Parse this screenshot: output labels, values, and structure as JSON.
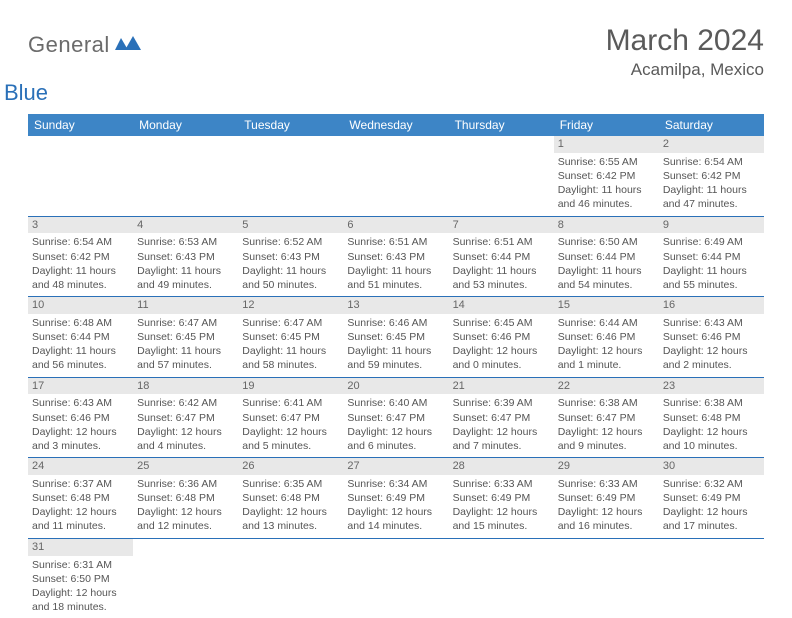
{
  "brand": {
    "general": "General",
    "blue": "Blue",
    "icon_color": "#2a70b8"
  },
  "header": {
    "month": "March 2024",
    "location": "Acamilpa, Mexico"
  },
  "styling": {
    "header_bg": "#3d85c6",
    "header_text": "#ffffff",
    "daynum_bg": "#e8e8e8",
    "border_color": "#2a70b8",
    "text_color": "#555555",
    "title_color": "#5a5a5a"
  },
  "calendar": {
    "daysOfWeek": [
      "Sunday",
      "Monday",
      "Tuesday",
      "Wednesday",
      "Thursday",
      "Friday",
      "Saturday"
    ],
    "weeks": [
      [
        null,
        null,
        null,
        null,
        null,
        {
          "n": "1",
          "sr": "Sunrise: 6:55 AM",
          "ss": "Sunset: 6:42 PM",
          "dl": "Daylight: 11 hours and 46 minutes."
        },
        {
          "n": "2",
          "sr": "Sunrise: 6:54 AM",
          "ss": "Sunset: 6:42 PM",
          "dl": "Daylight: 11 hours and 47 minutes."
        }
      ],
      [
        {
          "n": "3",
          "sr": "Sunrise: 6:54 AM",
          "ss": "Sunset: 6:42 PM",
          "dl": "Daylight: 11 hours and 48 minutes."
        },
        {
          "n": "4",
          "sr": "Sunrise: 6:53 AM",
          "ss": "Sunset: 6:43 PM",
          "dl": "Daylight: 11 hours and 49 minutes."
        },
        {
          "n": "5",
          "sr": "Sunrise: 6:52 AM",
          "ss": "Sunset: 6:43 PM",
          "dl": "Daylight: 11 hours and 50 minutes."
        },
        {
          "n": "6",
          "sr": "Sunrise: 6:51 AM",
          "ss": "Sunset: 6:43 PM",
          "dl": "Daylight: 11 hours and 51 minutes."
        },
        {
          "n": "7",
          "sr": "Sunrise: 6:51 AM",
          "ss": "Sunset: 6:44 PM",
          "dl": "Daylight: 11 hours and 53 minutes."
        },
        {
          "n": "8",
          "sr": "Sunrise: 6:50 AM",
          "ss": "Sunset: 6:44 PM",
          "dl": "Daylight: 11 hours and 54 minutes."
        },
        {
          "n": "9",
          "sr": "Sunrise: 6:49 AM",
          "ss": "Sunset: 6:44 PM",
          "dl": "Daylight: 11 hours and 55 minutes."
        }
      ],
      [
        {
          "n": "10",
          "sr": "Sunrise: 6:48 AM",
          "ss": "Sunset: 6:44 PM",
          "dl": "Daylight: 11 hours and 56 minutes."
        },
        {
          "n": "11",
          "sr": "Sunrise: 6:47 AM",
          "ss": "Sunset: 6:45 PM",
          "dl": "Daylight: 11 hours and 57 minutes."
        },
        {
          "n": "12",
          "sr": "Sunrise: 6:47 AM",
          "ss": "Sunset: 6:45 PM",
          "dl": "Daylight: 11 hours and 58 minutes."
        },
        {
          "n": "13",
          "sr": "Sunrise: 6:46 AM",
          "ss": "Sunset: 6:45 PM",
          "dl": "Daylight: 11 hours and 59 minutes."
        },
        {
          "n": "14",
          "sr": "Sunrise: 6:45 AM",
          "ss": "Sunset: 6:46 PM",
          "dl": "Daylight: 12 hours and 0 minutes."
        },
        {
          "n": "15",
          "sr": "Sunrise: 6:44 AM",
          "ss": "Sunset: 6:46 PM",
          "dl": "Daylight: 12 hours and 1 minute."
        },
        {
          "n": "16",
          "sr": "Sunrise: 6:43 AM",
          "ss": "Sunset: 6:46 PM",
          "dl": "Daylight: 12 hours and 2 minutes."
        }
      ],
      [
        {
          "n": "17",
          "sr": "Sunrise: 6:43 AM",
          "ss": "Sunset: 6:46 PM",
          "dl": "Daylight: 12 hours and 3 minutes."
        },
        {
          "n": "18",
          "sr": "Sunrise: 6:42 AM",
          "ss": "Sunset: 6:47 PM",
          "dl": "Daylight: 12 hours and 4 minutes."
        },
        {
          "n": "19",
          "sr": "Sunrise: 6:41 AM",
          "ss": "Sunset: 6:47 PM",
          "dl": "Daylight: 12 hours and 5 minutes."
        },
        {
          "n": "20",
          "sr": "Sunrise: 6:40 AM",
          "ss": "Sunset: 6:47 PM",
          "dl": "Daylight: 12 hours and 6 minutes."
        },
        {
          "n": "21",
          "sr": "Sunrise: 6:39 AM",
          "ss": "Sunset: 6:47 PM",
          "dl": "Daylight: 12 hours and 7 minutes."
        },
        {
          "n": "22",
          "sr": "Sunrise: 6:38 AM",
          "ss": "Sunset: 6:47 PM",
          "dl": "Daylight: 12 hours and 9 minutes."
        },
        {
          "n": "23",
          "sr": "Sunrise: 6:38 AM",
          "ss": "Sunset: 6:48 PM",
          "dl": "Daylight: 12 hours and 10 minutes."
        }
      ],
      [
        {
          "n": "24",
          "sr": "Sunrise: 6:37 AM",
          "ss": "Sunset: 6:48 PM",
          "dl": "Daylight: 12 hours and 11 minutes."
        },
        {
          "n": "25",
          "sr": "Sunrise: 6:36 AM",
          "ss": "Sunset: 6:48 PM",
          "dl": "Daylight: 12 hours and 12 minutes."
        },
        {
          "n": "26",
          "sr": "Sunrise: 6:35 AM",
          "ss": "Sunset: 6:48 PM",
          "dl": "Daylight: 12 hours and 13 minutes."
        },
        {
          "n": "27",
          "sr": "Sunrise: 6:34 AM",
          "ss": "Sunset: 6:49 PM",
          "dl": "Daylight: 12 hours and 14 minutes."
        },
        {
          "n": "28",
          "sr": "Sunrise: 6:33 AM",
          "ss": "Sunset: 6:49 PM",
          "dl": "Daylight: 12 hours and 15 minutes."
        },
        {
          "n": "29",
          "sr": "Sunrise: 6:33 AM",
          "ss": "Sunset: 6:49 PM",
          "dl": "Daylight: 12 hours and 16 minutes."
        },
        {
          "n": "30",
          "sr": "Sunrise: 6:32 AM",
          "ss": "Sunset: 6:49 PM",
          "dl": "Daylight: 12 hours and 17 minutes."
        }
      ],
      [
        {
          "n": "31",
          "sr": "Sunrise: 6:31 AM",
          "ss": "Sunset: 6:50 PM",
          "dl": "Daylight: 12 hours and 18 minutes."
        },
        null,
        null,
        null,
        null,
        null,
        null
      ]
    ]
  }
}
